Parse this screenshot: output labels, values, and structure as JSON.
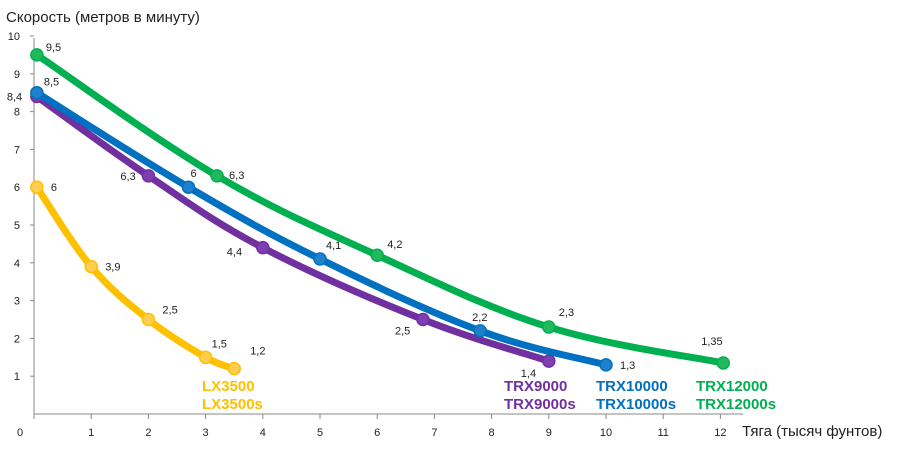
{
  "chart_data": {
    "type": "line",
    "title": "",
    "ylabel": "Скорость (метров в минуту)",
    "xlabel": "Тяга (тысяч фунтов)",
    "xlim": [
      0,
      12.4
    ],
    "ylim": [
      0,
      10
    ],
    "x_ticks": [
      0,
      1,
      2,
      3,
      4,
      5,
      6,
      7,
      8,
      9,
      10,
      11,
      12
    ],
    "y_ticks": [
      1,
      2,
      3,
      4,
      5,
      6,
      7,
      8,
      9,
      10
    ],
    "grid": false,
    "series": [
      {
        "names": [
          "LX3500",
          "LX3500s"
        ],
        "color": "#FFC000",
        "marker_fill": "#FFCD50",
        "points": [
          {
            "x": 0.05,
            "y": 6,
            "label": "6"
          },
          {
            "x": 1,
            "y": 3.9,
            "label": "3,9"
          },
          {
            "x": 2,
            "y": 2.5,
            "label": "2,5"
          },
          {
            "x": 3,
            "y": 1.5,
            "label": "1,5"
          },
          {
            "x": 3.5,
            "y": 1.2,
            "label": "1,2"
          }
        ]
      },
      {
        "names": [
          "TRX9000",
          "TRX9000s"
        ],
        "color": "#7030A0",
        "marker_fill": "#7F3FB0",
        "points": [
          {
            "x": 0.05,
            "y": 8.4,
            "label": "8,4"
          },
          {
            "x": 2,
            "y": 6.3,
            "label": "6,3"
          },
          {
            "x": 4,
            "y": 4.4,
            "label": "4,4"
          },
          {
            "x": 6.8,
            "y": 2.5,
            "label": "2,5"
          },
          {
            "x": 9,
            "y": 1.4,
            "label": "1,4"
          }
        ]
      },
      {
        "names": [
          "TRX10000",
          "TRX10000s"
        ],
        "color": "#0070C0",
        "marker_fill": "#1F80CC",
        "points": [
          {
            "x": 0.05,
            "y": 8.5,
            "label": "8,5"
          },
          {
            "x": 2.7,
            "y": 6,
            "label": "6"
          },
          {
            "x": 5,
            "y": 4.1,
            "label": "4,1"
          },
          {
            "x": 7.8,
            "y": 2.2,
            "label": "2,2"
          },
          {
            "x": 10,
            "y": 1.3,
            "label": "1,3"
          }
        ]
      },
      {
        "names": [
          "TRX12000",
          "TRX12000s"
        ],
        "color": "#00B050",
        "marker_fill": "#22B85E",
        "points": [
          {
            "x": 0.05,
            "y": 9.5,
            "label": "9,5"
          },
          {
            "x": 3.2,
            "y": 6.3,
            "label": "6,3"
          },
          {
            "x": 6,
            "y": 4.2,
            "label": "4,2"
          },
          {
            "x": 9,
            "y": 2.3,
            "label": "2,3"
          },
          {
            "x": 12.05,
            "y": 1.35,
            "label": "1,35"
          }
        ]
      }
    ]
  }
}
